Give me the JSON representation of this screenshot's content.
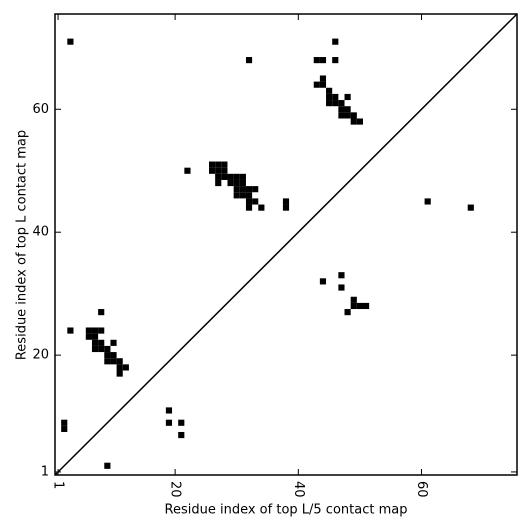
{
  "chart_data": {
    "type": "scatter",
    "marker": "square",
    "xlabel": "Residue index of top L/5 contact map",
    "ylabel": "Residue index of top L contact map",
    "xlim": [
      0.5,
      75.5
    ],
    "ylim": [
      0.5,
      75.5
    ],
    "xticks": [
      1,
      20,
      40,
      60
    ],
    "yticks": [
      1,
      20,
      40,
      60
    ],
    "diagonal": true,
    "series": [
      {
        "color": "#000000",
        "x": [
          3,
          32,
          46,
          43,
          44,
          46,
          44,
          43,
          44,
          45,
          45,
          46,
          48,
          45,
          46,
          47,
          47,
          48,
          47,
          48,
          49,
          49,
          50,
          22,
          26,
          27,
          28,
          26,
          27,
          28,
          27,
          28,
          29,
          30,
          31,
          27,
          29,
          30,
          31,
          30,
          31,
          32,
          33,
          30,
          31,
          32,
          32,
          33,
          32,
          34,
          38,
          38
        ],
        "y": [
          71,
          68,
          71,
          68,
          68,
          68,
          65,
          64,
          64,
          63,
          62,
          62,
          62,
          61,
          61,
          61,
          60,
          60,
          59,
          59,
          59,
          58,
          58,
          50,
          51,
          51,
          51,
          50,
          50,
          50,
          49,
          49,
          49,
          49,
          49,
          48,
          48,
          48,
          48,
          47,
          47,
          47,
          47,
          46,
          46,
          46,
          45,
          45,
          44,
          44,
          45,
          44
        ]
      },
      {
        "color": "#000000",
        "x": [
          61,
          68,
          44,
          47,
          47,
          49,
          49,
          50,
          51,
          48,
          3,
          8,
          6,
          7,
          8,
          6,
          7,
          7,
          8,
          10,
          7,
          8,
          9,
          9,
          10,
          9,
          10,
          11,
          11,
          12,
          11,
          19,
          19,
          21,
          21,
          2,
          2,
          9
        ],
        "y": [
          45,
          44,
          32,
          33,
          31,
          29,
          28,
          28,
          28,
          27,
          24,
          27,
          24,
          24,
          24,
          23,
          23,
          22,
          22,
          22,
          21,
          21,
          21,
          20,
          20,
          19,
          19,
          19,
          18,
          18,
          17,
          11,
          9,
          9,
          7,
          9,
          8,
          2
        ]
      }
    ]
  }
}
